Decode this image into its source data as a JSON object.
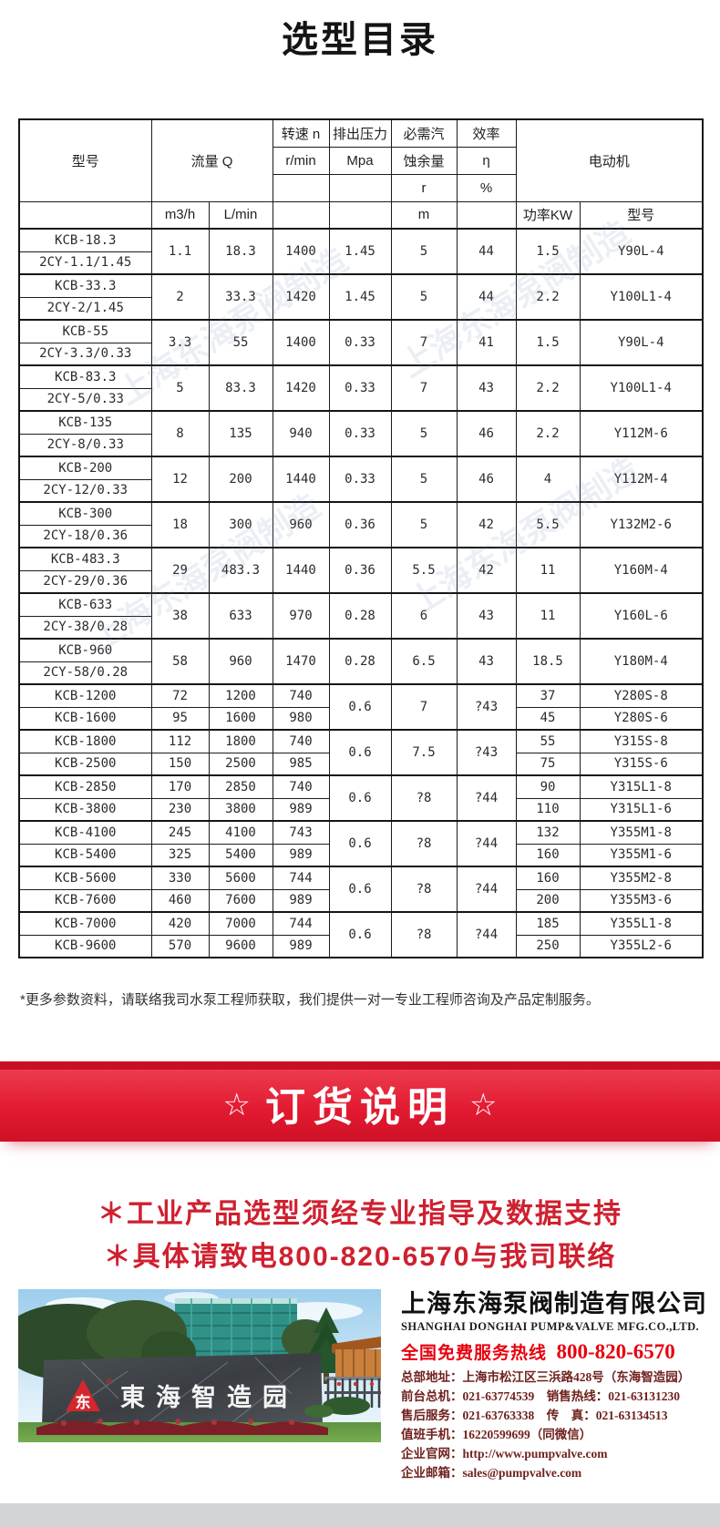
{
  "page": {
    "title": "选型目录"
  },
  "table": {
    "header": {
      "model": "型号",
      "flow": "流量 Q",
      "flow_units": [
        "m3/h",
        "L/min"
      ],
      "speed": [
        "转速 n",
        "r/min"
      ],
      "pressure": [
        "排出压力",
        "Mpa"
      ],
      "npsh": [
        "必需汽",
        "蚀余量",
        "r",
        "m"
      ],
      "eff": [
        "效率",
        "η",
        "%"
      ],
      "motor": "电动机",
      "motor_units": [
        "功率KW",
        "型号"
      ]
    },
    "pair_rows": [
      {
        "models": [
          "KCB-18.3",
          "2CY-1.1/1.45"
        ],
        "vals": [
          "1.1",
          "18.3",
          "1400",
          "1.45",
          "5",
          "44",
          "1.5",
          "Y90L-4"
        ]
      },
      {
        "models": [
          "KCB-33.3",
          "2CY-2/1.45"
        ],
        "vals": [
          "2",
          "33.3",
          "1420",
          "1.45",
          "5",
          "44",
          "2.2",
          "Y100L1-4"
        ]
      },
      {
        "models": [
          "KCB-55",
          "2CY-3.3/0.33"
        ],
        "vals": [
          "3.3",
          "55",
          "1400",
          "0.33",
          "7",
          "41",
          "1.5",
          "Y90L-4"
        ]
      },
      {
        "models": [
          "KCB-83.3",
          "2CY-5/0.33"
        ],
        "vals": [
          "5",
          "83.3",
          "1420",
          "0.33",
          "7",
          "43",
          "2.2",
          "Y100L1-4"
        ]
      },
      {
        "models": [
          "KCB-135",
          "2CY-8/0.33"
        ],
        "vals": [
          "8",
          "135",
          "940",
          "0.33",
          "5",
          "46",
          "2.2",
          "Y112M-6"
        ]
      },
      {
        "models": [
          "KCB-200",
          "2CY-12/0.33"
        ],
        "vals": [
          "12",
          "200",
          "1440",
          "0.33",
          "5",
          "46",
          "4",
          "Y112M-4"
        ]
      },
      {
        "models": [
          "KCB-300",
          "2CY-18/0.36"
        ],
        "vals": [
          "18",
          "300",
          "960",
          "0.36",
          "5",
          "42",
          "5.5",
          "Y132M2-6"
        ]
      },
      {
        "models": [
          "KCB-483.3",
          "2CY-29/0.36"
        ],
        "vals": [
          "29",
          "483.3",
          "1440",
          "0.36",
          "5.5",
          "42",
          "11",
          "Y160M-4"
        ]
      },
      {
        "models": [
          "KCB-633",
          "2CY-38/0.28"
        ],
        "vals": [
          "38",
          "633",
          "970",
          "0.28",
          "6",
          "43",
          "11",
          "Y160L-6"
        ]
      },
      {
        "models": [
          "KCB-960",
          "2CY-58/0.28"
        ],
        "vals": [
          "58",
          "960",
          "1470",
          "0.28",
          "6.5",
          "43",
          "18.5",
          "Y180M-4"
        ]
      }
    ],
    "group_rows": [
      {
        "mpa": "0.6",
        "npsh": "7",
        "eff": "?43",
        "rows": [
          {
            "model": "KCB-1200",
            "m3h": "72",
            "lmin": "1200",
            "rpm": "740",
            "kw": "37",
            "motor": "Y280S-8"
          },
          {
            "model": "KCB-1600",
            "m3h": "95",
            "lmin": "1600",
            "rpm": "980",
            "kw": "45",
            "motor": "Y280S-6"
          }
        ]
      },
      {
        "mpa": "0.6",
        "npsh": "7.5",
        "eff": "?43",
        "rows": [
          {
            "model": "KCB-1800",
            "m3h": "112",
            "lmin": "1800",
            "rpm": "740",
            "kw": "55",
            "motor": "Y315S-8"
          },
          {
            "model": "KCB-2500",
            "m3h": "150",
            "lmin": "2500",
            "rpm": "985",
            "kw": "75",
            "motor": "Y315S-6"
          }
        ]
      },
      {
        "mpa": "0.6",
        "npsh": "?8",
        "eff": "?44",
        "rows": [
          {
            "model": "KCB-2850",
            "m3h": "170",
            "lmin": "2850",
            "rpm": "740",
            "kw": "90",
            "motor": "Y315L1-8"
          },
          {
            "model": "KCB-3800",
            "m3h": "230",
            "lmin": "3800",
            "rpm": "989",
            "kw": "110",
            "motor": "Y315L1-6"
          }
        ]
      },
      {
        "mpa": "0.6",
        "npsh": "?8",
        "eff": "?44",
        "rows": [
          {
            "model": "KCB-4100",
            "m3h": "245",
            "lmin": "4100",
            "rpm": "743",
            "kw": "132",
            "motor": "Y355M1-8"
          },
          {
            "model": "KCB-5400",
            "m3h": "325",
            "lmin": "5400",
            "rpm": "989",
            "kw": "160",
            "motor": "Y355M1-6"
          }
        ]
      },
      {
        "mpa": "0.6",
        "npsh": "?8",
        "eff": "?44",
        "rows": [
          {
            "model": "KCB-5600",
            "m3h": "330",
            "lmin": "5600",
            "rpm": "744",
            "kw": "160",
            "motor": "Y355M2-8"
          },
          {
            "model": "KCB-7600",
            "m3h": "460",
            "lmin": "7600",
            "rpm": "989",
            "kw": "200",
            "motor": "Y355M3-6"
          }
        ]
      },
      {
        "mpa": "0.6",
        "npsh": "?8",
        "eff": "?44",
        "rows": [
          {
            "model": "KCB-7000",
            "m3h": "420",
            "lmin": "7000",
            "rpm": "744",
            "kw": "185",
            "motor": "Y355L1-8"
          },
          {
            "model": "KCB-9600",
            "m3h": "570",
            "lmin": "9600",
            "rpm": "989",
            "kw": "250",
            "motor": "Y355L2-6"
          }
        ]
      }
    ]
  },
  "watermark": "上海东海泵阀制造",
  "footnote": "*更多参数资料，请联络我司水泵工程师获取，我们提供一对一专业工程师咨询及产品定制服务。",
  "banner": {
    "title": "订货说明",
    "star": "☆"
  },
  "notice": [
    "＊工业产品选型须经专业指导及数据支持",
    "＊具体请致电800-820-6570与我司联络"
  ],
  "company": {
    "name": "上海东海泵阀制造有限公司",
    "name_en": "SHANGHAI DONGHAI PUMP&VALVE MFG.CO.,LTD.",
    "hotline_label": "全国免费服务热线",
    "hotline_number": "800-820-6570",
    "details": [
      "总部地址：上海市松江区三浜路428号（东海智造园）",
      "前台总机：021-63774539　销售热线：021-63131230",
      "售后服务：021-63763338　传　真：021-63134513",
      "值班手机：16220599699（同微信）",
      "企业官网：http://www.pumpvalve.com",
      "企业邮箱：sales@pumpvalve.com"
    ]
  },
  "photo": {
    "sign_text": "東海智造园",
    "logo_char": "东",
    "logo_reg": "®"
  }
}
